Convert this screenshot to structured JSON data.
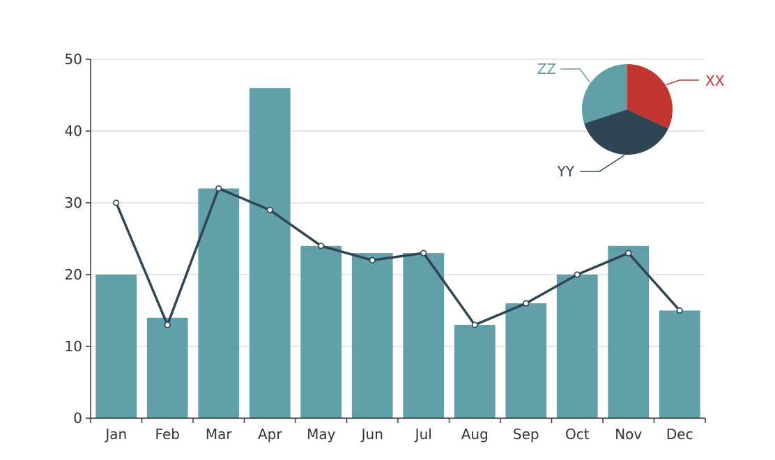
{
  "chart_data": [
    {
      "type": "bar",
      "categories": [
        "Jan",
        "Feb",
        "Mar",
        "Apr",
        "May",
        "Jun",
        "Jul",
        "Aug",
        "Sep",
        "Oct",
        "Nov",
        "Dec"
      ],
      "series": [
        {
          "type": "bar",
          "values": [
            20,
            14,
            32,
            46,
            24,
            23,
            23,
            13,
            16,
            20,
            24,
            15
          ],
          "color": "#61a0a8"
        },
        {
          "type": "line",
          "values": [
            30,
            13,
            32,
            29,
            24,
            22,
            23,
            13,
            16,
            20,
            23,
            15
          ],
          "color": "#2f4554"
        }
      ],
      "ylim": [
        0,
        50
      ],
      "yticks": [
        0,
        10,
        20,
        30,
        40,
        50
      ],
      "grid": true
    },
    {
      "type": "pie",
      "labels": [
        "XX",
        "YY",
        "ZZ"
      ],
      "values": [
        32,
        38,
        30
      ],
      "colors": [
        "#c23531",
        "#2f4554",
        "#61a0a8"
      ],
      "legend": "none"
    }
  ]
}
